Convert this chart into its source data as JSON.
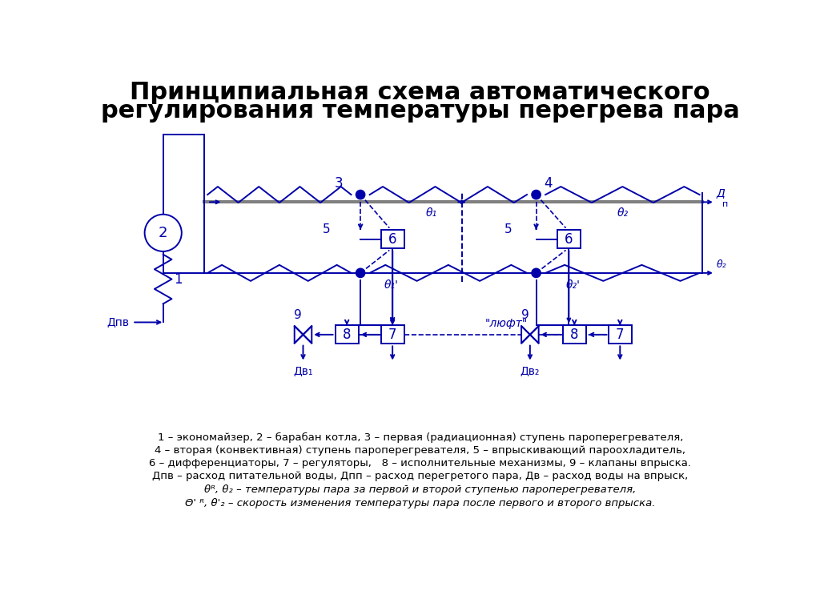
{
  "title_line1": "Принципиальная схема автоматического",
  "title_line2": "регулирования температуры перегрева пара",
  "title_fontsize": 22,
  "bg_color": "#ffffff",
  "diagram_color": "#0000aa",
  "legend_texts": [
    [
      "1 – экономайзер, 2 – барабан котла, 3 – первая (радиационная) ступень пароперегревателя,",
      false
    ],
    [
      "4 – вторая (конвективная) ступень пароперегревателя, 5 – впрыскивающий пароохладитель,",
      false
    ],
    [
      "6 – дифференциаторы, 7 – регуляторы,   8 – исполнительные механизмы, 9 – клапаны впрыска.",
      false
    ],
    [
      "Дпв – расход питательной воды, Дпп – расход перегретого пара, Дв – расход воды на впрыск,",
      false
    ],
    [
      "θᴿ, θ₂ – температуры пара за первой и второй ступенью пароперегревателя,",
      true
    ],
    [
      "Θ' ᴿ, θ'₂ – скорость изменения температуры пара после первого и второго впрыска.",
      true
    ]
  ]
}
